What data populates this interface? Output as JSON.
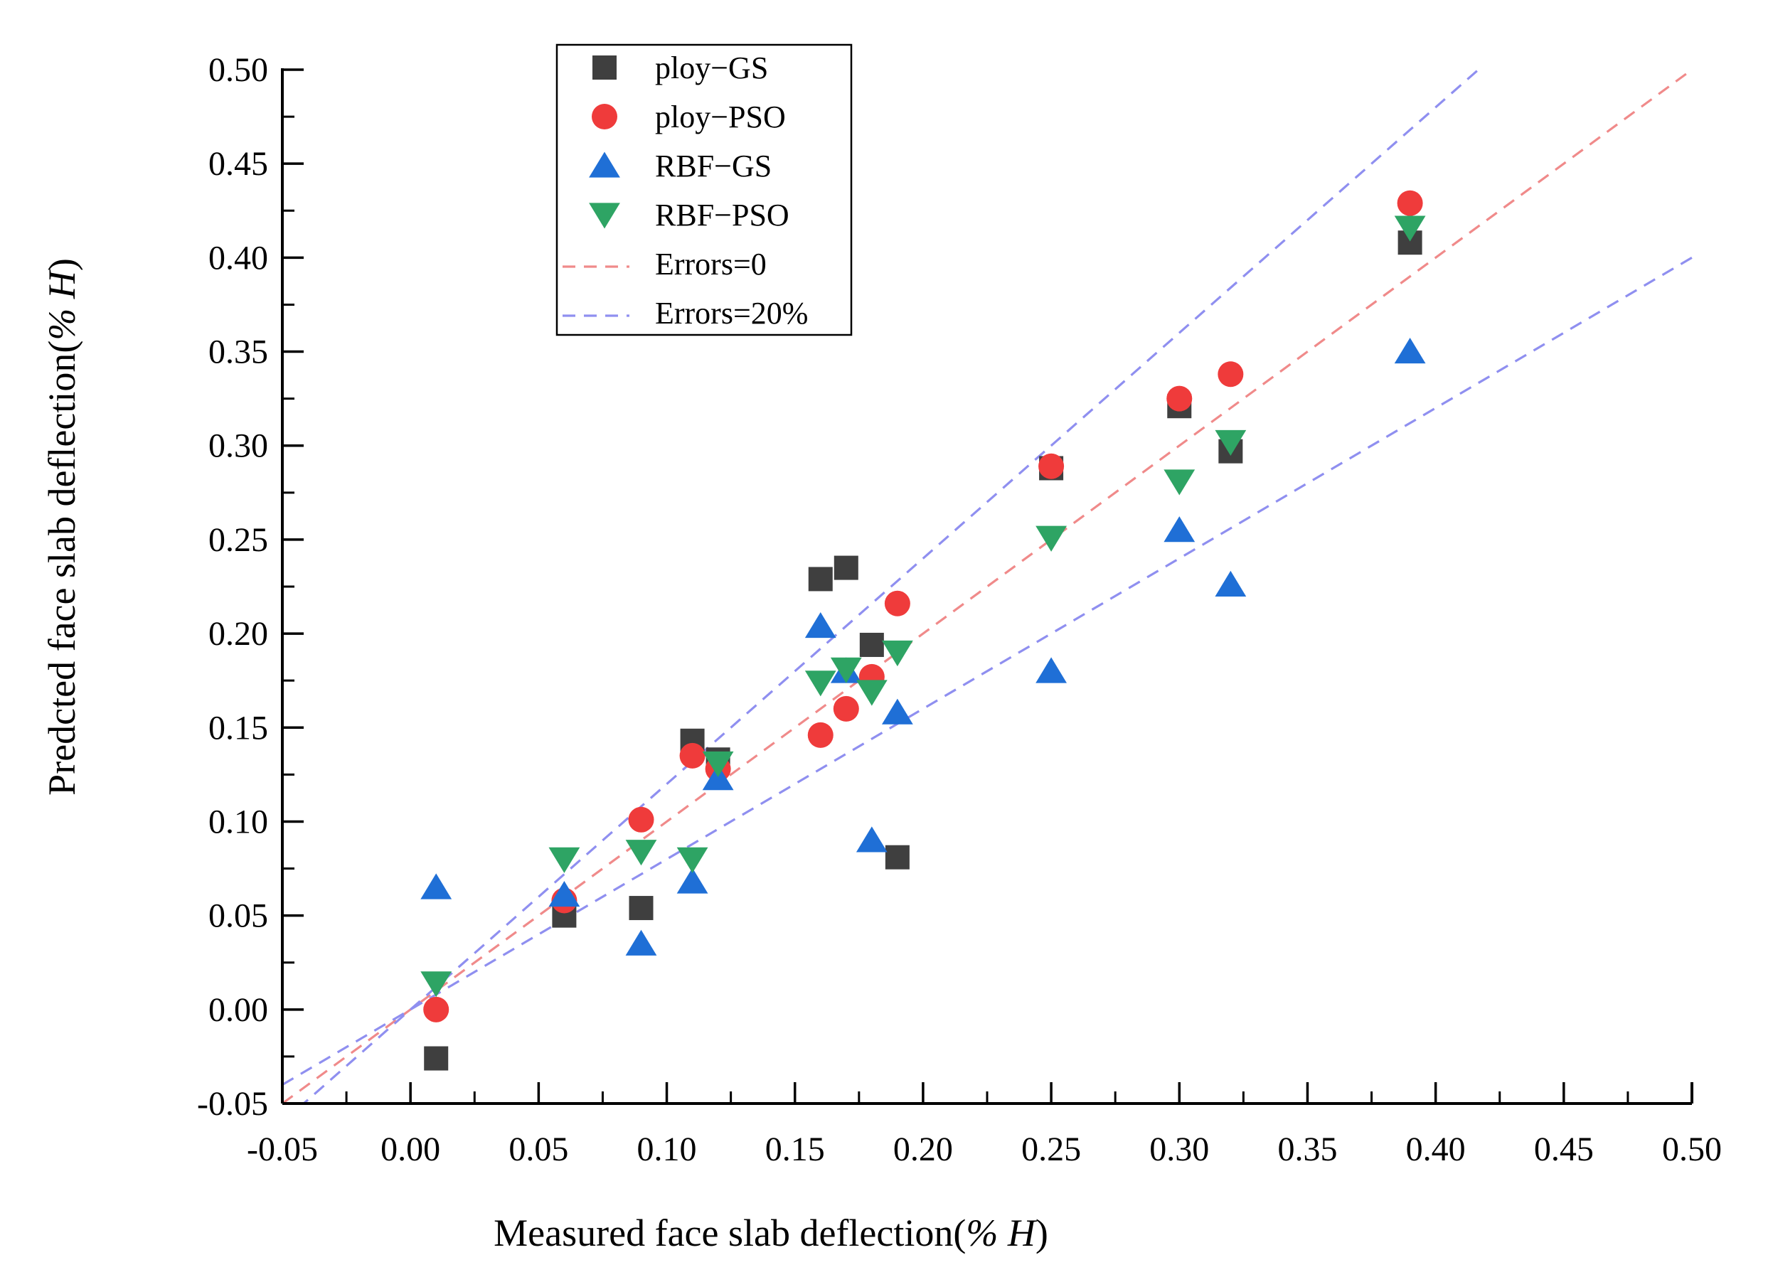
{
  "chart_data": {
    "type": "scatter",
    "title": "",
    "xlabel": "Measured face slab deflection(% H)",
    "xlabel_main": "Measured face slab deflection(",
    "xlabel_italic": "% H",
    "xlabel_close": ")",
    "ylabel": "Predcted face slab deflection(% H)",
    "ylabel_main": "Predcted face slab deflection(",
    "ylabel_italic": "% H",
    "ylabel_close": ")",
    "xlim": [
      -0.05,
      0.5
    ],
    "ylim": [
      -0.05,
      0.5
    ],
    "xticks": [
      -0.05,
      0.0,
      0.05,
      0.1,
      0.15,
      0.2,
      0.25,
      0.3,
      0.35,
      0.4,
      0.45,
      0.5
    ],
    "xtick_labels": [
      "-0.05",
      "0.00",
      "0.05",
      "0.10",
      "0.15",
      "0.20",
      "0.25",
      "0.30",
      "0.35",
      "0.40",
      "0.45",
      "0.50"
    ],
    "yticks": [
      -0.05,
      0.0,
      0.05,
      0.1,
      0.15,
      0.2,
      0.25,
      0.3,
      0.35,
      0.4,
      0.45,
      0.5
    ],
    "ytick_labels": [
      "-0.05",
      "0.00",
      "0.05",
      "0.10",
      "0.15",
      "0.20",
      "0.25",
      "0.30",
      "0.35",
      "0.40",
      "0.45",
      "0.50"
    ],
    "legend_position": "top-left",
    "grid": false,
    "series": [
      {
        "name": "ploy−GS",
        "marker": "square",
        "color": "#3f3f3f",
        "x": [
          0.01,
          0.06,
          0.09,
          0.11,
          0.12,
          0.16,
          0.17,
          0.18,
          0.19,
          0.25,
          0.3,
          0.32,
          0.39
        ],
        "y": [
          -0.026,
          0.05,
          0.054,
          0.143,
          0.133,
          0.229,
          0.235,
          0.194,
          0.081,
          0.288,
          0.321,
          0.297,
          0.408
        ]
      },
      {
        "name": "ploy−PSO",
        "marker": "circle",
        "color": "#ef3b3b",
        "x": [
          0.01,
          0.06,
          0.09,
          0.11,
          0.12,
          0.16,
          0.17,
          0.18,
          0.19,
          0.25,
          0.3,
          0.32,
          0.39
        ],
        "y": [
          0.0,
          0.058,
          0.101,
          0.135,
          0.128,
          0.146,
          0.16,
          0.177,
          0.216,
          0.289,
          0.325,
          0.338,
          0.429
        ]
      },
      {
        "name": "RBF−GS",
        "marker": "triangle-up",
        "color": "#1f6fd6",
        "x": [
          0.01,
          0.06,
          0.09,
          0.11,
          0.12,
          0.16,
          0.17,
          0.18,
          0.19,
          0.25,
          0.3,
          0.32,
          0.39
        ],
        "y": [
          0.065,
          0.061,
          0.035,
          0.068,
          0.123,
          0.204,
          0.18,
          0.09,
          0.158,
          0.18,
          0.255,
          0.226,
          0.35
        ]
      },
      {
        "name": "RBF−PSO",
        "marker": "triangle-down",
        "color": "#2ea464",
        "x": [
          0.01,
          0.06,
          0.09,
          0.11,
          0.12,
          0.16,
          0.17,
          0.18,
          0.19,
          0.25,
          0.3,
          0.32,
          0.39
        ],
        "y": [
          0.014,
          0.08,
          0.084,
          0.08,
          0.131,
          0.174,
          0.181,
          0.169,
          0.19,
          0.251,
          0.281,
          0.302,
          0.416
        ]
      }
    ],
    "reference_lines": [
      {
        "name": "Errors=0",
        "color": "#f08a8a",
        "slopes": [
          1.0
        ]
      },
      {
        "name": "Errors=20%",
        "color": "#8f8ff0",
        "slopes": [
          1.2,
          0.8
        ]
      }
    ]
  }
}
